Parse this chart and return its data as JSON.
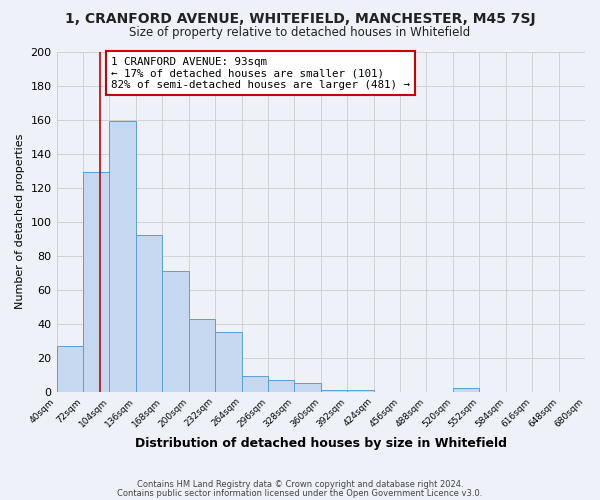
{
  "title": "1, CRANFORD AVENUE, WHITEFIELD, MANCHESTER, M45 7SJ",
  "subtitle": "Size of property relative to detached houses in Whitefield",
  "xlabel": "Distribution of detached houses by size in Whitefield",
  "ylabel": "Number of detached properties",
  "bar_values": [
    27,
    129,
    159,
    92,
    71,
    43,
    35,
    9,
    7,
    5,
    1,
    1,
    0,
    0,
    0,
    2
  ],
  "bin_edges": [
    40,
    72,
    104,
    136,
    168,
    200,
    232,
    264,
    296,
    328,
    360,
    392,
    424,
    456,
    488,
    520,
    552,
    584,
    616,
    648,
    680
  ],
  "tick_labels": [
    "40sqm",
    "72sqm",
    "104sqm",
    "136sqm",
    "168sqm",
    "200sqm",
    "232sqm",
    "264sqm",
    "296sqm",
    "328sqm",
    "360sqm",
    "392sqm",
    "424sqm",
    "456sqm",
    "488sqm",
    "520sqm",
    "552sqm",
    "584sqm",
    "616sqm",
    "648sqm",
    "680sqm"
  ],
  "bar_color": "#c5d8f0",
  "bar_edge_color": "#5a9fd4",
  "property_line_x": 93,
  "annotation_text": "1 CRANFORD AVENUE: 93sqm\n← 17% of detached houses are smaller (101)\n82% of semi-detached houses are larger (481) →",
  "annotation_box_color": "#ffffff",
  "annotation_border_color": "#cc0000",
  "property_line_color": "#cc0000",
  "ylim": [
    0,
    200
  ],
  "yticks": [
    0,
    20,
    40,
    60,
    80,
    100,
    120,
    140,
    160,
    180,
    200
  ],
  "grid_color": "#cccccc",
  "bg_color": "#eef2f8",
  "footer_line1": "Contains HM Land Registry data © Crown copyright and database right 2024.",
  "footer_line2": "Contains public sector information licensed under the Open Government Licence v3.0."
}
